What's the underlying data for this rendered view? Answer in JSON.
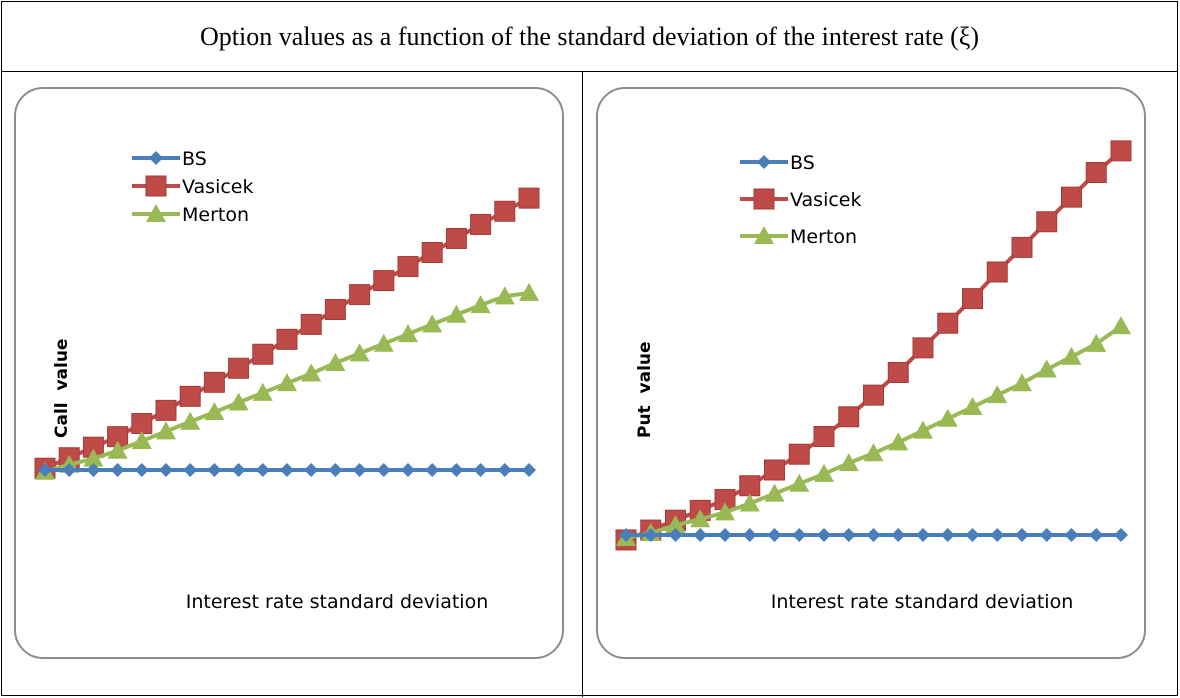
{
  "title": "Option values as a function of the standard deviation of the interest rate (ξ)",
  "colors": {
    "bs": "#4A7EBB",
    "vasicek": "#BE4B48",
    "merton": "#98B954"
  },
  "chart_data": [
    {
      "type": "line",
      "ylabel": "Call  value",
      "xlabel": "Interest rate standard deviation",
      "legend_position": "top-left",
      "grid": false,
      "points": 21,
      "series": [
        {
          "name": "BS",
          "values": [
            0,
            0,
            0,
            0,
            0,
            0,
            0,
            0,
            0,
            0,
            0,
            0,
            0,
            0,
            0,
            0,
            0,
            0,
            0,
            0,
            0
          ]
        },
        {
          "name": "Vasicek",
          "values": [
            0.2,
            1.4,
            2.6,
            3.8,
            5.3,
            6.8,
            8.4,
            10.0,
            11.6,
            13.2,
            14.9,
            16.6,
            18.3,
            20.0,
            21.6,
            23.2,
            24.8,
            26.4,
            28.0,
            29.5,
            31.0
          ]
        },
        {
          "name": "Merton",
          "values": [
            -0.2,
            0.6,
            1.3,
            2.2,
            3.3,
            4.4,
            5.5,
            6.6,
            7.7,
            8.8,
            9.9,
            11.0,
            12.2,
            13.3,
            14.4,
            15.5,
            16.6,
            17.7,
            18.8,
            19.8,
            20.2
          ]
        }
      ]
    },
    {
      "type": "line",
      "ylabel": "Put  value",
      "xlabel": "Interest rate standard deviation",
      "legend_position": "top-left",
      "grid": false,
      "points": 21,
      "series": [
        {
          "name": "BS",
          "values": [
            0,
            0,
            0,
            0,
            0,
            0,
            0,
            0,
            0,
            0,
            0,
            0,
            0,
            0,
            0,
            0,
            0,
            0,
            0,
            0,
            0
          ]
        },
        {
          "name": "Vasicek",
          "values": [
            -0.5,
            0.5,
            1.5,
            2.5,
            3.6,
            5.0,
            6.6,
            8.2,
            10.0,
            12.0,
            14.2,
            16.5,
            19.0,
            21.5,
            24.0,
            26.7,
            29.2,
            31.8,
            34.3,
            36.8,
            39.0
          ]
        },
        {
          "name": "Merton",
          "values": [
            -0.3,
            0.2,
            1.0,
            1.6,
            2.3,
            3.2,
            4.2,
            5.2,
            6.2,
            7.3,
            8.3,
            9.4,
            10.6,
            11.8,
            13.0,
            14.2,
            15.4,
            16.8,
            18.1,
            19.4,
            21.2
          ]
        }
      ]
    }
  ]
}
